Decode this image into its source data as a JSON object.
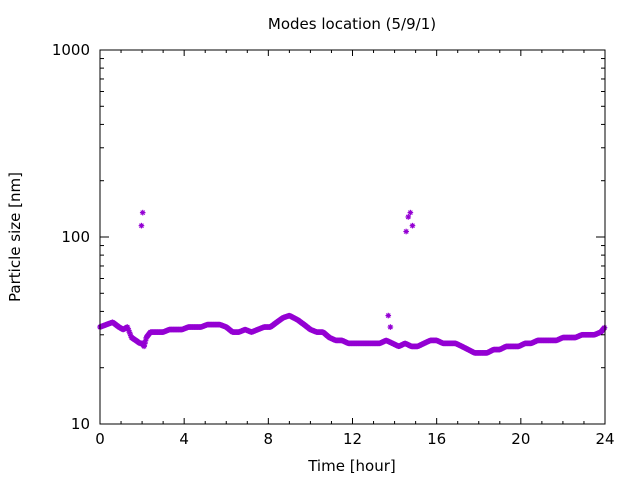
{
  "chart_data": {
    "type": "scatter",
    "title": "Modes location (5/9/1)",
    "xlabel": "Time [hour]",
    "ylabel": "Particle size [nm]",
    "xlim": [
      0,
      24
    ],
    "ylim": [
      10,
      1000
    ],
    "yscale": "log",
    "xticks": [
      0,
      4,
      8,
      12,
      16,
      20,
      24
    ],
    "xtick_labels": [
      "0",
      "4",
      "8",
      "12",
      "16",
      "20",
      "24"
    ],
    "yticks": [
      10,
      100,
      1000
    ],
    "ytick_labels": [
      "10",
      "100",
      "1000"
    ],
    "grid": false,
    "legend": false,
    "marker": "asterisk",
    "color": "#9400d3",
    "baseline": {
      "x": [
        0,
        0.3,
        0.6,
        0.9,
        1.1,
        1.3,
        1.5,
        1.7,
        1.9,
        2.0,
        2.1,
        2.2,
        2.4,
        2.7,
        3.0,
        3.3,
        3.6,
        3.9,
        4.2,
        4.5,
        4.8,
        5.1,
        5.4,
        5.7,
        6.0,
        6.3,
        6.6,
        6.9,
        7.2,
        7.5,
        7.8,
        8.1,
        8.4,
        8.7,
        9.0,
        9.2,
        9.4,
        9.7,
        10.0,
        10.3,
        10.6,
        10.9,
        11.2,
        11.5,
        11.8,
        12.1,
        12.4,
        12.7,
        13.0,
        13.3,
        13.6,
        13.9,
        14.2,
        14.5,
        14.8,
        15.1,
        15.4,
        15.7,
        16.0,
        16.3,
        16.6,
        16.9,
        17.2,
        17.5,
        17.8,
        18.1,
        18.4,
        18.7,
        19.0,
        19.3,
        19.6,
        19.9,
        20.2,
        20.5,
        20.8,
        21.1,
        21.4,
        21.7,
        22.0,
        22.3,
        22.6,
        22.9,
        23.2,
        23.5,
        23.8,
        24.0
      ],
      "y": [
        33,
        34,
        35,
        33,
        32,
        33,
        29,
        28,
        27,
        27,
        26,
        29,
        31,
        31,
        31,
        32,
        32,
        32,
        33,
        33,
        33,
        34,
        34,
        34,
        33,
        31,
        31,
        32,
        31,
        32,
        33,
        33,
        35,
        37,
        38,
        37,
        36,
        34,
        32,
        31,
        31,
        29,
        28,
        28,
        27,
        27,
        27,
        27,
        27,
        27,
        28,
        27,
        26,
        27,
        26,
        26,
        27,
        28,
        28,
        27,
        27,
        27,
        26,
        25,
        24,
        24,
        24,
        25,
        25,
        26,
        26,
        26,
        27,
        27,
        28,
        28,
        28,
        28,
        29,
        29,
        29,
        30,
        30,
        30,
        31,
        33
      ]
    },
    "outliers": {
      "x": [
        1.97,
        2.03,
        13.7,
        13.8,
        14.55,
        14.65,
        14.75,
        14.85
      ],
      "y": [
        115,
        135,
        38,
        33,
        107,
        128,
        135,
        115
      ]
    }
  }
}
